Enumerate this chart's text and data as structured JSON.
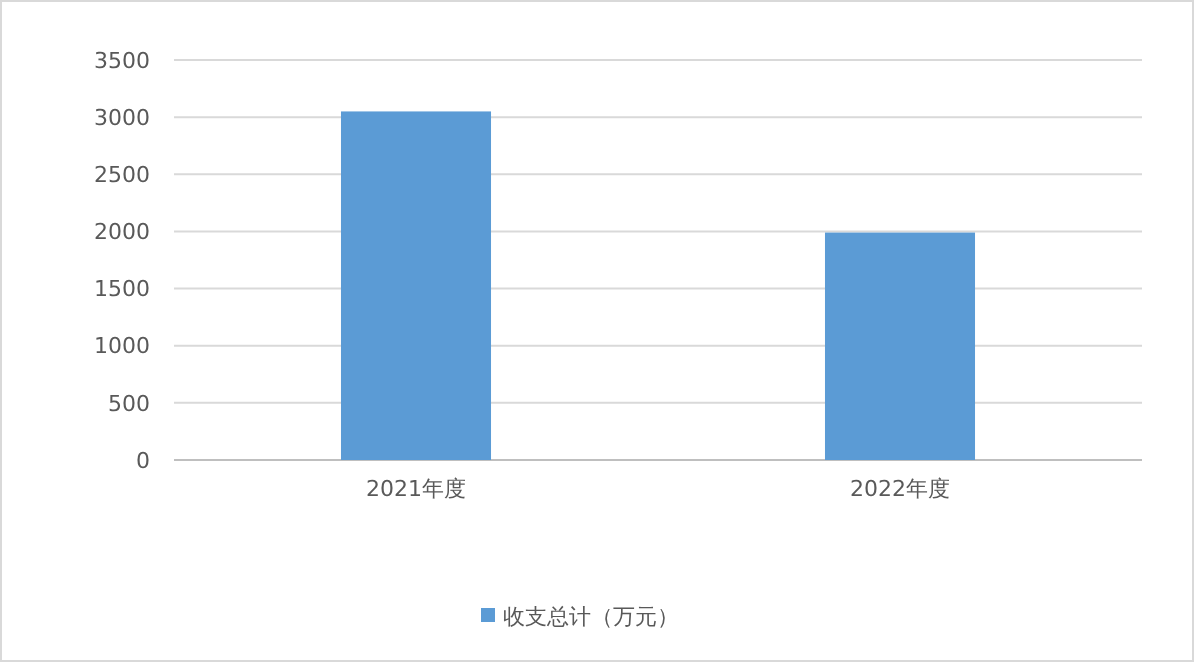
{
  "chart_data": {
    "type": "bar",
    "categories": [
      "2021年度",
      "2022年度"
    ],
    "series": [
      {
        "name": "收支总计（万元）",
        "color": "#5b9bd5",
        "values": [
          3050,
          1990
        ]
      }
    ],
    "ylim": [
      0,
      3500
    ],
    "yticks": [
      0,
      500,
      1000,
      1500,
      2000,
      2500,
      3000,
      3500
    ],
    "grid": "y",
    "legend": "bottom"
  }
}
